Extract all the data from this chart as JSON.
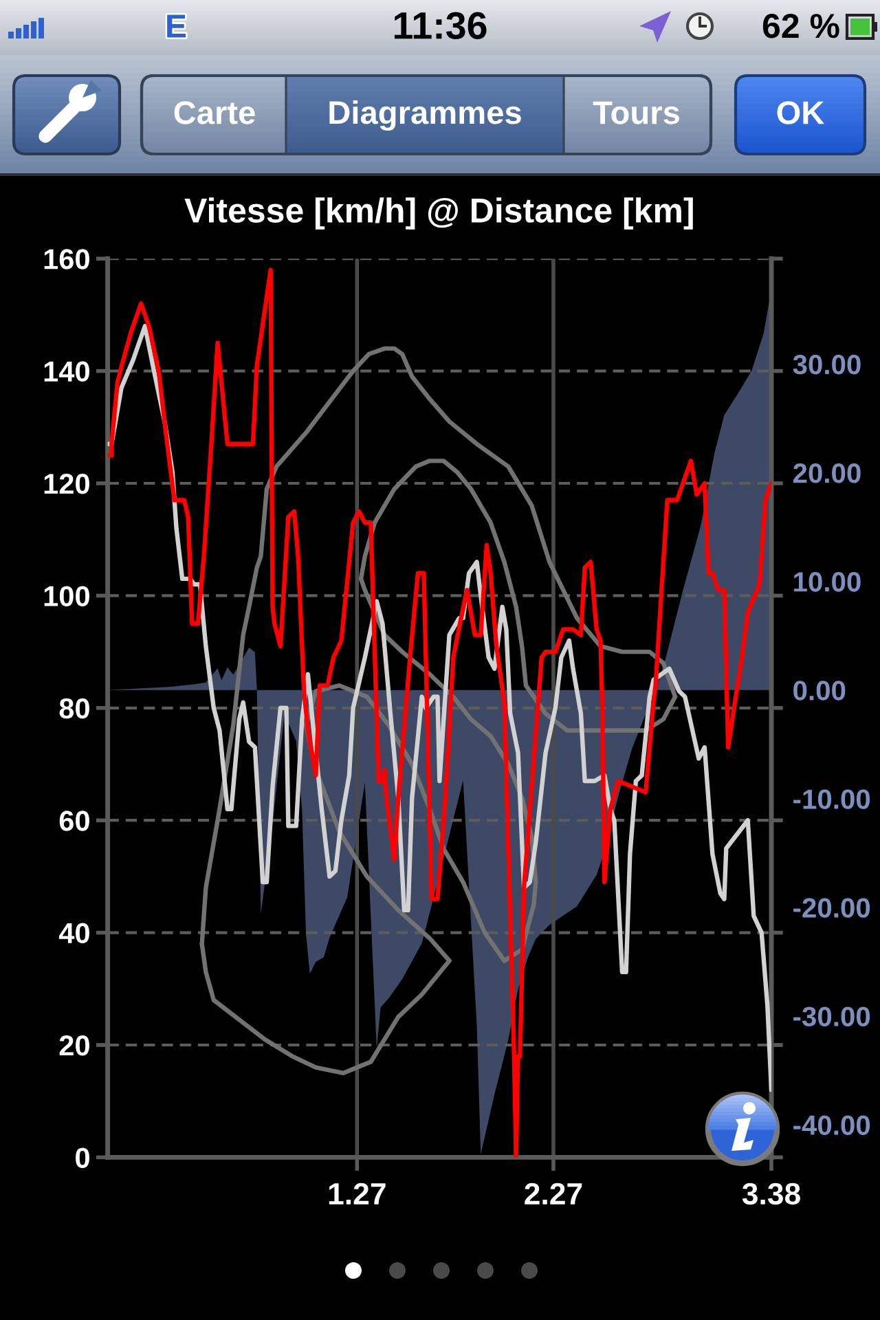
{
  "chart_data": {
    "type": "line",
    "title": "Vitesse [km/h] @ Distance [km]",
    "annotations": [
      "11:36",
      "E",
      "62 %",
      "Carte",
      "Diagrammes",
      "Tours",
      "OK"
    ],
    "xlim": [
      0,
      3.38
    ],
    "xticks": [
      1.27,
      2.27,
      3.38
    ],
    "ylim": [
      0,
      160
    ],
    "yticks": [
      0,
      20,
      40,
      60,
      80,
      100,
      120,
      140,
      160
    ],
    "y2lim": [
      -43,
      39.7
    ],
    "y2ticks": [
      {
        "value": -40,
        "label": "-40.00"
      },
      {
        "value": -30,
        "label": "-30.00"
      },
      {
        "value": -20,
        "label": "-20.00"
      },
      {
        "value": -10,
        "label": "-10.00"
      },
      {
        "value": 0,
        "label": "0.00"
      },
      {
        "value": 10,
        "label": "10.00"
      },
      {
        "value": 20,
        "label": "20.00"
      },
      {
        "value": 30,
        "label": "30.00"
      }
    ],
    "grid": true,
    "line_style": "solid",
    "series": [
      {
        "type": "area",
        "axis": "y2",
        "color": "#3d4965",
        "x": [
          0,
          0.32,
          0.43,
          0.5,
          0.56,
          0.58,
          0.61,
          0.64,
          0.72,
          0.75,
          0.76,
          0.78,
          0.84,
          0.9,
          0.96,
          0.99,
          1.01,
          1.03,
          1.06,
          1.1,
          1.13,
          1.2,
          1.22,
          1.31,
          1.37,
          1.39,
          1.43,
          1.5,
          1.6,
          1.69,
          1.76,
          1.81,
          1.88,
          1.9,
          1.97,
          2.04,
          2.09,
          2.14,
          2.18,
          2.25,
          2.39,
          2.49,
          2.53,
          2.6,
          2.67,
          2.74,
          2.79,
          2.84,
          2.93,
          3.02,
          3.09,
          3.14,
          3.21,
          3.28,
          3.34,
          3.37,
          3.38
        ],
        "values": [
          0,
          0.3,
          0.5,
          0.7,
          2.0,
          0.9,
          2.1,
          1.4,
          3.9,
          3.5,
          0,
          -20.6,
          -12.3,
          -2.2,
          -4.7,
          -11.1,
          -22.5,
          -26.1,
          -25.0,
          -24.6,
          -22.8,
          -19.9,
          -19.1,
          -8.5,
          -33.0,
          -29.2,
          -28.4,
          -26.6,
          -23.3,
          -17.0,
          -11.9,
          -8.3,
          -30.9,
          -42.7,
          -37.2,
          -32.2,
          -27.5,
          -24.6,
          -22.9,
          -21.6,
          -19.9,
          -17.0,
          -14.9,
          -9.8,
          -5.4,
          -2.2,
          0,
          2.8,
          9.2,
          15.1,
          21.8,
          25.3,
          27.3,
          29.4,
          32.8,
          35.8,
          38.9
        ]
      },
      {
        "color": "#727272",
        "x": [
          0.48,
          0.5,
          0.54,
          0.8,
          0.94,
          1.06,
          1.2,
          1.34,
          1.48,
          1.6,
          1.74
        ],
        "values": [
          38,
          33,
          28,
          21,
          18,
          16,
          15,
          17,
          25,
          29,
          35
        ]
      },
      {
        "color": "#727272",
        "x": [
          0.48,
          0.5,
          0.57,
          0.64,
          0.69,
          0.72,
          0.76,
          0.78,
          0.81,
          0.86,
          1.01,
          1.25,
          1.33,
          1.41,
          1.46,
          1.5,
          1.55,
          1.64,
          1.74,
          1.88,
          2.04,
          2.16,
          2.25,
          2.39,
          2.51,
          2.62,
          2.76,
          2.83,
          2.89
        ],
        "values": [
          38,
          48,
          62,
          77,
          93,
          98,
          105,
          107,
          119,
          123,
          129,
          140,
          143,
          144,
          144,
          143,
          139,
          135,
          131,
          127,
          123,
          116,
          106,
          96,
          91,
          90,
          90,
          88,
          82
        ]
      },
      {
        "color": "#727272",
        "x": [
          1.29,
          1.31,
          1.36,
          1.46,
          1.57,
          1.64,
          1.71,
          1.78,
          1.85,
          1.95,
          2.02,
          2.08,
          2.11,
          2.13,
          2.23,
          2.34,
          2.55,
          2.74,
          2.83,
          2.89
        ],
        "values": [
          103,
          107,
          113,
          119,
          123,
          124,
          124,
          122,
          119,
          113,
          106,
          98,
          91,
          84,
          79,
          76,
          76,
          76,
          78,
          82
        ]
      },
      {
        "color": "#727272",
        "x": [
          1.29,
          1.31,
          1.36,
          1.41,
          1.5,
          1.64,
          1.76,
          1.85,
          1.95,
          2.04,
          2.11,
          2.16,
          2.18
        ],
        "values": [
          103,
          101,
          97,
          93,
          90,
          86,
          82,
          78,
          75,
          70,
          64,
          57,
          49
        ]
      },
      {
        "color": "#727272",
        "x": [
          1.01,
          1.06,
          1.18,
          1.32,
          1.43,
          1.55,
          1.64,
          1.71,
          1.81,
          1.92,
          2.02,
          2.11,
          2.17,
          2.18
        ],
        "values": [
          77,
          83,
          84,
          82,
          77,
          70,
          62,
          55,
          49,
          40,
          35,
          37,
          45,
          49
        ]
      },
      {
        "color": "#727272",
        "x": [
          1.01,
          1.06,
          1.18,
          1.32,
          1.48,
          1.64,
          1.74
        ],
        "values": [
          77,
          69,
          58,
          50,
          44,
          39,
          35
        ]
      },
      {
        "color": "#d2d2d2",
        "x": [
          0,
          0.02,
          0.05,
          0.07,
          0.13,
          0.19,
          0.23,
          0.29,
          0.33,
          0.35,
          0.38,
          0.42,
          0.44,
          0.47,
          0.5,
          0.54,
          0.57,
          0.61,
          0.63,
          0.67,
          0.69,
          0.72,
          0.75,
          0.79,
          0.81,
          0.84,
          0.88,
          0.91,
          0.92,
          0.96,
          0.99,
          1.02,
          1.04,
          1.09,
          1.13,
          1.16,
          1.19,
          1.2,
          1.23,
          1.25,
          1.31,
          1.37,
          1.4,
          1.44,
          1.48,
          1.51,
          1.53,
          1.55,
          1.6,
          1.62,
          1.66,
          1.68,
          1.69,
          1.74,
          1.79,
          1.81,
          1.84,
          1.88,
          1.9,
          1.94,
          1.97,
          2.01,
          2.03,
          2.05,
          2.09,
          2.12,
          2.15,
          2.18,
          2.23,
          2.28,
          2.31,
          2.35,
          2.37,
          2.41,
          2.43,
          2.48,
          2.53,
          2.56,
          2.58,
          2.62,
          2.64,
          2.66,
          2.69,
          2.72,
          2.76,
          2.78,
          2.86,
          2.91,
          2.94,
          3.01,
          3.04,
          3.08,
          3.12,
          3.14,
          3.15,
          3.26,
          3.29,
          3.33,
          3.36,
          3.38
        ],
        "values": [
          127,
          127,
          133,
          137,
          142,
          148,
          141,
          131,
          122,
          112,
          103,
          103,
          102,
          102,
          91,
          80,
          76,
          62,
          62,
          78,
          81,
          74,
          73,
          49,
          49,
          66,
          80,
          80,
          59,
          59,
          78,
          86,
          79,
          62,
          50,
          51,
          60,
          62,
          68,
          80,
          89,
          99,
          95,
          79,
          64,
          44,
          44,
          64,
          82,
          80,
          82,
          82,
          67,
          93,
          96,
          96,
          104,
          106,
          100,
          89,
          87,
          98,
          94,
          79,
          72,
          48,
          49,
          56,
          72,
          80,
          89,
          92,
          87,
          79,
          67,
          67,
          68,
          62,
          60,
          33,
          33,
          54,
          67,
          68,
          82,
          85,
          87,
          83,
          82,
          71,
          73,
          54,
          47,
          46,
          55,
          60,
          43,
          40,
          27,
          12
        ]
      },
      {
        "color": "#ff0000",
        "x": [
          0,
          0.02,
          0.02,
          0.05,
          0.08,
          0.12,
          0.17,
          0.21,
          0.26,
          0.3,
          0.34,
          0.39,
          0.41,
          0.43,
          0.46,
          0.49,
          0.53,
          0.56,
          0.61,
          0.74,
          0.76,
          0.83,
          0.84,
          0.85,
          0.88,
          0.92,
          0.95,
          0.97,
          1.0,
          1.02,
          1.06,
          1.08,
          1.12,
          1.15,
          1.19,
          1.25,
          1.28,
          1.31,
          1.34,
          1.38,
          1.4,
          1.41,
          1.42,
          1.46,
          1.48,
          1.54,
          1.58,
          1.61,
          1.65,
          1.68,
          1.72,
          1.76,
          1.8,
          1.83,
          1.87,
          1.9,
          1.93,
          1.95,
          1.98,
          2.02,
          2.07,
          2.08,
          2.09,
          2.1,
          2.12,
          2.21,
          2.23,
          2.28,
          2.32,
          2.37,
          2.41,
          2.43,
          2.46,
          2.49,
          2.51,
          2.52,
          2.53,
          2.56,
          2.6,
          2.74,
          2.78,
          2.79,
          2.85,
          2.9,
          2.97,
          3.0,
          3.04,
          3.06,
          3.08,
          3.11,
          3.14,
          3.16,
          3.19,
          3.23,
          3.26,
          3.32,
          3.35,
          3.38
        ],
        "values": [
          125,
          125,
          127,
          138,
          142,
          147,
          152,
          148,
          140,
          128,
          117,
          117,
          114,
          95,
          95,
          107,
          128,
          145,
          127,
          127,
          141,
          158,
          98,
          95,
          91,
          114,
          115,
          107,
          83,
          76,
          68,
          84,
          84,
          89,
          92,
          113,
          115,
          113,
          113,
          67,
          67,
          69,
          64,
          53,
          64,
          89,
          104,
          104,
          46,
          46,
          64,
          89,
          96,
          101,
          93,
          93,
          109,
          104,
          91,
          81,
          18,
          0,
          18,
          18,
          48,
          89,
          90,
          90,
          94,
          94,
          93,
          105,
          106,
          94,
          92,
          79,
          49,
          62,
          67,
          65,
          81,
          84,
          117,
          117,
          124,
          118,
          120,
          104,
          104,
          101,
          101,
          73,
          80,
          89,
          97,
          102,
          117,
          120
        ]
      }
    ]
  }
}
